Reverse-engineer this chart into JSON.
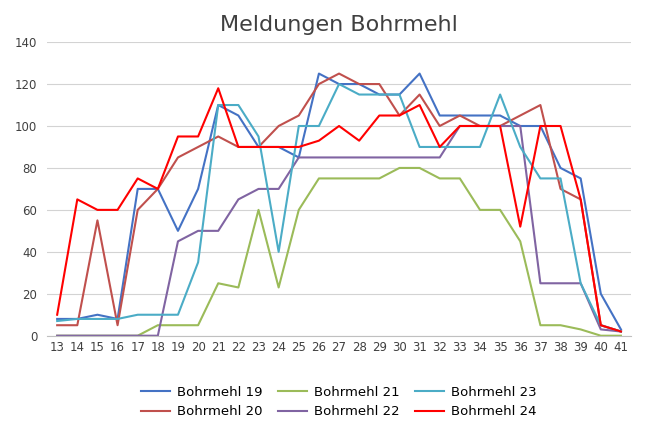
{
  "title": "Meldungen Bohrmehl",
  "x": [
    13,
    14,
    15,
    16,
    17,
    18,
    19,
    20,
    21,
    22,
    23,
    24,
    25,
    26,
    27,
    28,
    29,
    30,
    31,
    32,
    33,
    34,
    35,
    36,
    37,
    38,
    39,
    40,
    41
  ],
  "series": {
    "Bohrmehl 19": {
      "color": "#4472C4",
      "values": [
        8,
        8,
        10,
        8,
        70,
        70,
        50,
        70,
        110,
        105,
        90,
        90,
        85,
        125,
        120,
        120,
        115,
        115,
        125,
        105,
        105,
        105,
        105,
        100,
        100,
        80,
        75,
        20,
        3
      ]
    },
    "Bohrmehl 20": {
      "color": "#C0504D",
      "values": [
        5,
        5,
        55,
        5,
        60,
        70,
        85,
        90,
        95,
        90,
        90,
        100,
        105,
        120,
        125,
        120,
        120,
        105,
        115,
        100,
        105,
        100,
        100,
        105,
        110,
        70,
        65,
        5,
        2
      ]
    },
    "Bohrmehl 21": {
      "color": "#9BBB59",
      "values": [
        0,
        0,
        0,
        0,
        0,
        5,
        5,
        5,
        25,
        23,
        60,
        23,
        60,
        75,
        75,
        75,
        75,
        80,
        80,
        75,
        75,
        60,
        60,
        45,
        5,
        5,
        3,
        0,
        0
      ]
    },
    "Bohrmehl 22": {
      "color": "#8064A2",
      "values": [
        0,
        0,
        0,
        0,
        0,
        0,
        45,
        50,
        50,
        65,
        70,
        70,
        85,
        85,
        85,
        85,
        85,
        85,
        85,
        85,
        100,
        100,
        100,
        100,
        25,
        25,
        25,
        3,
        2
      ]
    },
    "Bohrmehl 23": {
      "color": "#4BACC6",
      "values": [
        7,
        8,
        8,
        8,
        10,
        10,
        10,
        35,
        110,
        110,
        95,
        40,
        100,
        100,
        120,
        115,
        115,
        115,
        90,
        90,
        90,
        90,
        115,
        90,
        75,
        75,
        25,
        5,
        2
      ]
    },
    "Bohrmehl 24": {
      "color": "#FF0000",
      "values": [
        10,
        65,
        60,
        60,
        75,
        70,
        95,
        95,
        118,
        90,
        90,
        90,
        90,
        93,
        100,
        93,
        105,
        105,
        110,
        90,
        100,
        100,
        100,
        52,
        100,
        100,
        65,
        5,
        2
      ]
    }
  },
  "ylim": [
    0,
    140
  ],
  "yticks": [
    0,
    20,
    40,
    60,
    80,
    100,
    120,
    140
  ],
  "background_color": "#ffffff",
  "grid_color": "#d3d3d3",
  "title_fontsize": 16,
  "legend_fontsize": 9.5,
  "title_color": "#404040"
}
